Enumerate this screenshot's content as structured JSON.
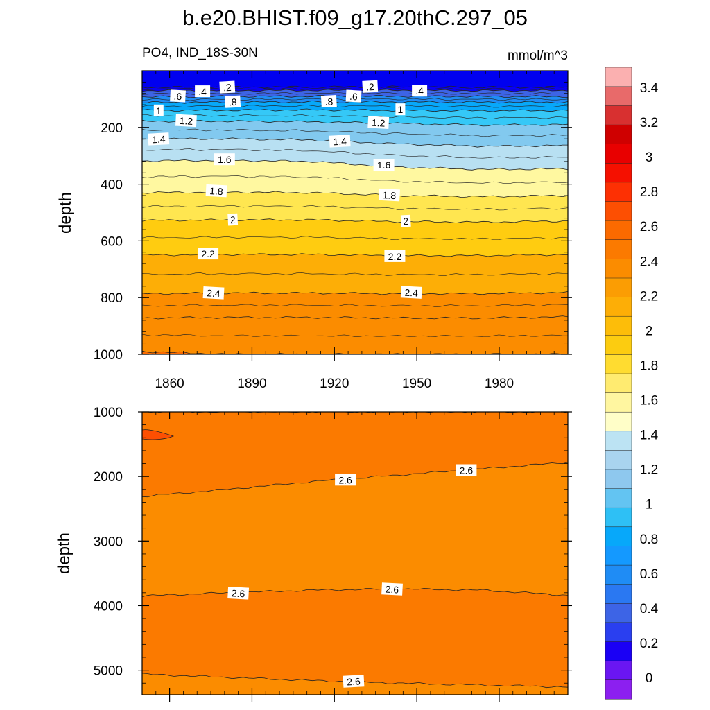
{
  "chart_data": {
    "type": "heatmap",
    "title": "b.e20.BHIST.f09_g17.20thC.297_05",
    "left_subtitle": "PO4, IND_18S-30N",
    "right_subtitle": "mmol/m^3",
    "x_range": [
      1850,
      2005
    ],
    "x_ticks": [
      "1860",
      "1890",
      "1920",
      "1950",
      "1980"
    ],
    "panels": [
      {
        "name": "upper",
        "ylabel": "depth",
        "ylim": [
          0,
          1000
        ],
        "yticks": [
          "200",
          "400",
          "600",
          "800",
          "1000"
        ],
        "contours": [
          {
            "level": 0.2,
            "depth": [
              58,
              58,
              57,
              57,
              58,
              58
            ],
            "labels": [
              {
                "text": ".2",
                "x": 1881
              },
              {
                "text": ".2",
                "x": 1933
              }
            ]
          },
          {
            "level": 0.4,
            "depth": [
              70,
              70,
              69,
              69,
              70,
              70
            ],
            "labels": [
              {
                "text": ".4",
                "x": 1872
              },
              {
                "text": ".4",
                "x": 1951
              }
            ]
          },
          {
            "level": 0.6,
            "depth": [
              92,
              91,
              90,
              90,
              91,
              91
            ],
            "labels": [
              {
                "text": ".6",
                "x": 1863
              },
              {
                "text": ".6",
                "x": 1927
              }
            ]
          },
          {
            "level": 0.8,
            "depth": [
              112,
              111,
              110,
              110,
              111,
              111
            ],
            "labels": [
              {
                "text": ".8",
                "x": 1883
              },
              {
                "text": ".8",
                "x": 1918
              }
            ]
          },
          {
            "level": 1.0,
            "depth": [
              140,
              139,
              138,
              140,
              141,
              140
            ],
            "labels": [
              {
                "text": "1",
                "x": 1856
              },
              {
                "text": "1",
                "x": 1944
              }
            ]
          },
          {
            "level": 1.2,
            "depth": [
              178,
              178,
              180,
              186,
              192,
              190
            ],
            "labels": [
              {
                "text": "1.2",
                "x": 1866
              },
              {
                "text": "1.2",
                "x": 1936
              }
            ]
          },
          {
            "level": 1.4,
            "depth": [
              240,
              240,
              244,
              258,
              266,
              264
            ],
            "labels": [
              {
                "text": "1.4",
                "x": 1856
              },
              {
                "text": "1.4",
                "x": 1922
              }
            ]
          },
          {
            "level": 1.6,
            "depth": [
              318,
              316,
              320,
              340,
              348,
              346
            ],
            "labels": [
              {
                "text": "1.6",
                "x": 1880
              },
              {
                "text": "1.6",
                "x": 1938
              }
            ]
          },
          {
            "level": 1.8,
            "depth": [
              430,
              428,
              430,
              440,
              444,
              440
            ],
            "labels": [
              {
                "text": "1.8",
                "x": 1877
              },
              {
                "text": "1.8",
                "x": 1940
              }
            ]
          },
          {
            "level": 2.0,
            "depth": [
              528,
              526,
              526,
              532,
              534,
              530
            ],
            "labels": [
              {
                "text": "2",
                "x": 1883
              },
              {
                "text": "2",
                "x": 1946
              }
            ]
          },
          {
            "level": 2.2,
            "depth": [
              650,
              648,
              648,
              652,
              652,
              648
            ],
            "labels": [
              {
                "text": "2.2",
                "x": 1874
              },
              {
                "text": "2.2",
                "x": 1942
              }
            ]
          },
          {
            "level": 2.4,
            "depth": [
              786,
              784,
              784,
              786,
              786,
              782
            ],
            "labels": [
              {
                "text": "2.4",
                "x": 1876
              },
              {
                "text": "2.4",
                "x": 1948
              }
            ]
          },
          {
            "level": 2.5,
            "depth": [
              872,
              870,
              870,
              872,
              872,
              868
            ],
            "labels": []
          },
          {
            "level": 2.6,
            "depth": [
              990,
              1000,
              1000,
              1000,
              1000,
              1000
            ],
            "labels": []
          }
        ]
      },
      {
        "name": "lower",
        "ylabel": "depth",
        "ylim": [
          1000,
          5380
        ],
        "yticks": [
          "1000",
          "2000",
          "3000",
          "4000",
          "5000"
        ],
        "contours": [
          {
            "level": 2.5,
            "depth": [
              1000,
              1000,
              1000,
              1000,
              1000,
              1000
            ],
            "labels": []
          },
          {
            "level": 2.6,
            "depth": [
              2310,
              2200,
              2080,
              1980,
              1880,
              1780
            ],
            "labels": [
              {
                "text": "2.6",
                "x": 1924
              },
              {
                "text": "2.6",
                "x": 1968
              }
            ]
          },
          {
            "level": 2.6,
            "depth": [
              3850,
              3800,
              3760,
              3740,
              3760,
              3840
            ],
            "labels": [
              {
                "text": "2.6",
                "x": 1885
              },
              {
                "text": "2.6",
                "x": 1941
              }
            ]
          },
          {
            "level": 2.6,
            "depth": [
              5060,
              5110,
              5160,
              5200,
              5230,
              5260
            ],
            "labels": [
              {
                "text": "2.6",
                "x": 1927
              }
            ]
          }
        ]
      }
    ],
    "colorbar": {
      "levels": [
        "0",
        "0.2",
        "0.4",
        "0.6",
        "0.8",
        "1",
        "1.2",
        "1.4",
        "1.6",
        "1.8",
        "2",
        "2.2",
        "2.4",
        "2.6",
        "2.8",
        "3",
        "3.2",
        "3.4"
      ],
      "colors": [
        "#8c1ff0",
        "#6a16f2",
        "#3210f2",
        "#0a00f5",
        "#2645f0",
        "#3d64e6",
        "#2a78f2",
        "#1f8cf5",
        "#1499ff",
        "#07a8fa",
        "#1cb9fa",
        "#35c8f7",
        "#5ac8f5",
        "#82c9ef",
        "#9ad0ee",
        "#b8e0f2",
        "#fffec8",
        "#fff8a0",
        "#ffef78",
        "#ffe650",
        "#ffdc30",
        "#ffcc10",
        "#fdbd09",
        "#fdae06",
        "#fd9d03",
        "#fb8c00",
        "#fb7a00",
        "#fb6a00",
        "#fd4f02",
        "#fd3003",
        "#f51000",
        "#e80000",
        "#cf0000",
        "#d83030",
        "#e86a6a",
        "#fbb0b0"
      ]
    }
  }
}
